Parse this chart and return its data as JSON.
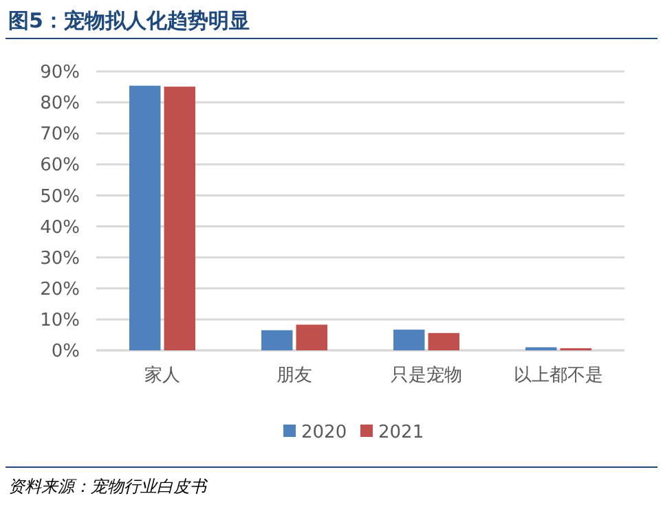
{
  "chart_data": {
    "type": "bar",
    "title": "图5：宠物拟人化趋势明显",
    "categories": [
      "家人",
      "朋友",
      "只是宠物",
      "以上都不是"
    ],
    "series": [
      {
        "name": "2020",
        "color": "#4f81bd",
        "values": [
          85.4,
          6.5,
          6.7,
          1.0
        ]
      },
      {
        "name": "2021",
        "color": "#c0504d",
        "values": [
          85.1,
          8.3,
          5.6,
          0.7
        ]
      }
    ],
    "ylim": [
      0,
      90
    ],
    "yticks": [
      {
        "value": 0,
        "label": "0%"
      },
      {
        "value": 10,
        "label": "10%"
      },
      {
        "value": 20,
        "label": "20%"
      },
      {
        "value": 30,
        "label": "30%"
      },
      {
        "value": 40,
        "label": "40%"
      },
      {
        "value": 50,
        "label": "50%"
      },
      {
        "value": 60,
        "label": "60%"
      },
      {
        "value": 70,
        "label": "70%"
      },
      {
        "value": 80,
        "label": "80%"
      },
      {
        "value": 90,
        "label": "90%"
      }
    ],
    "grid": "y",
    "legend": "bottom",
    "annotations": [
      "资料来源：宠物行业白皮书"
    ]
  }
}
